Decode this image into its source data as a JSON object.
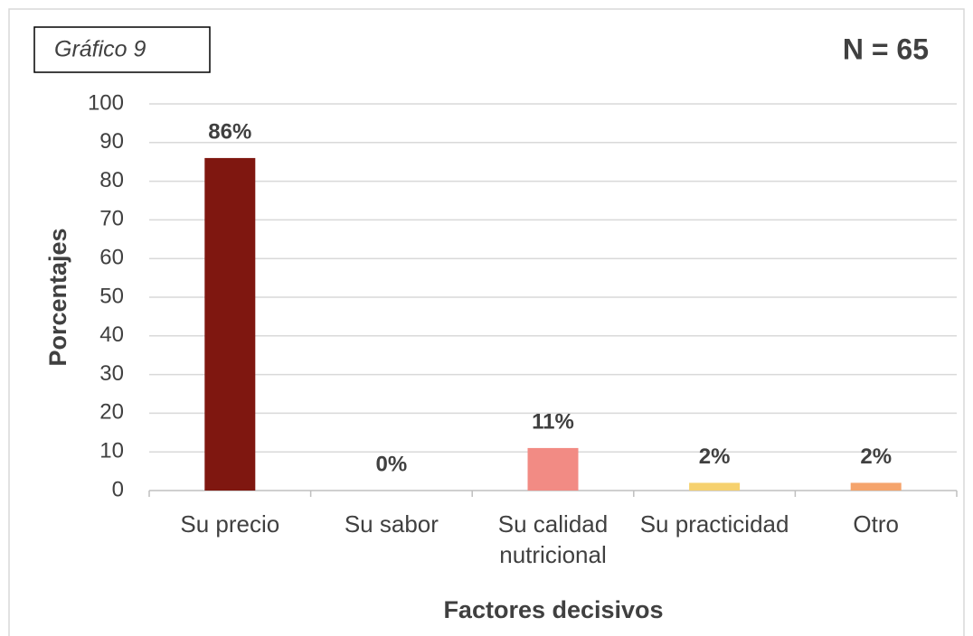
{
  "chart_data": {
    "type": "bar",
    "title": "Gráfico 9",
    "subtitle": "N = 65",
    "x_label": "Factores decisivos",
    "y_label": "Porcentajes",
    "categories": [
      "Su precio",
      "Su sabor",
      "Su calidad nutricional",
      "Su practicidad",
      "Otro"
    ],
    "values": [
      86,
      0,
      11,
      2,
      2
    ],
    "value_labels": [
      "86%",
      "0%",
      "11%",
      "2%",
      "2%"
    ],
    "colors": [
      "#7f1710",
      "#c0504d",
      "#f28b84",
      "#f6d16e",
      "#f5a46c"
    ],
    "ylim": [
      0,
      100
    ],
    "yticks": [
      0,
      10,
      20,
      30,
      40,
      50,
      60,
      70,
      80,
      90,
      100
    ],
    "grid": true
  }
}
